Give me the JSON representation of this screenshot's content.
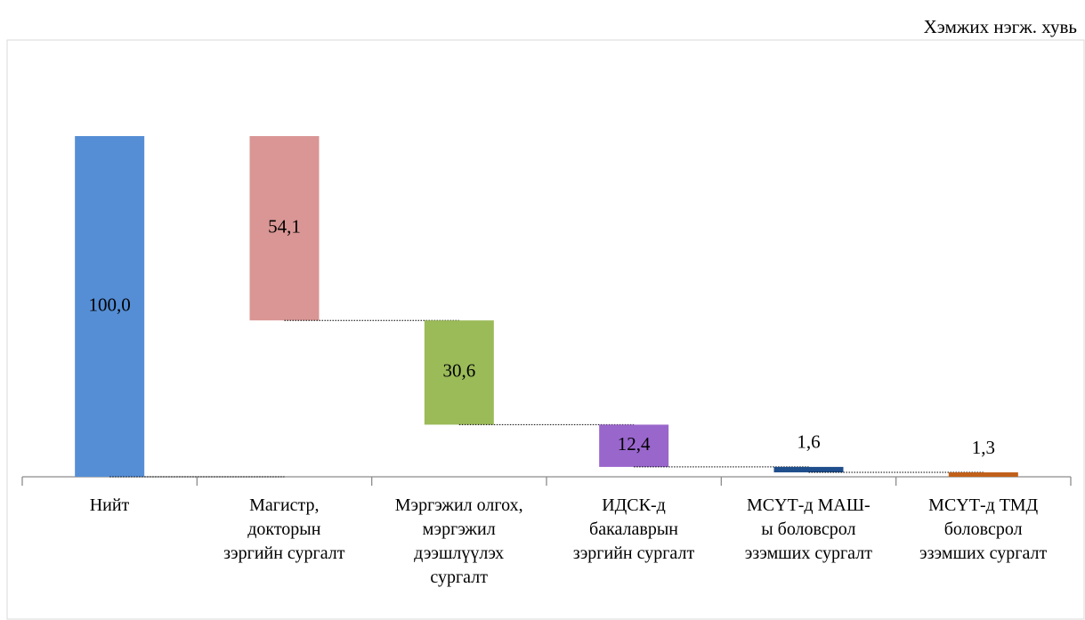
{
  "chart_data": {
    "type": "waterfall",
    "unit_label": "Хэмжих нэгж. хувь",
    "categories": [
      "Нийт",
      "Магистр,\nдокторын\nзэргийн сургалт",
      "Мэргэжил олгох,\nмэргэжил\nдээшлүүлэх\nсургалт",
      "ИДСК-д\nбакалаврын\nзэргийн сургалт",
      "МСҮТ-д МАШ-\nы боловсрол\nэзэмших сургалт",
      "МСҮТ-д ТМД\nболовсрол\nэзэмших сургалт"
    ],
    "values": [
      100.0,
      54.1,
      30.6,
      12.4,
      1.6,
      1.3
    ],
    "value_labels": [
      "100,0",
      "54,1",
      "30,6",
      "12,4",
      "1,6",
      "1,3"
    ],
    "colors": [
      "#558ed5",
      "#d99694",
      "#9bbb59",
      "#9966cc",
      "#1f4e8c",
      "#c0601a"
    ],
    "ylim": [
      0,
      100
    ]
  }
}
